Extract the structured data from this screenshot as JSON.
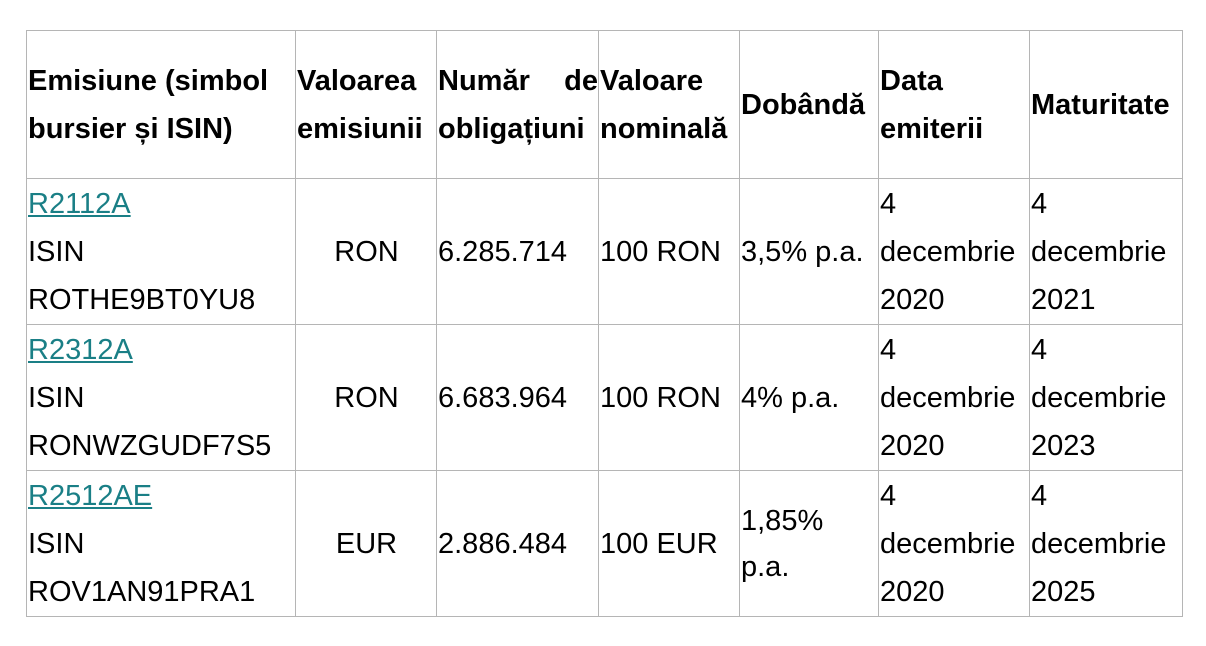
{
  "table": {
    "headers": [
      "Emisiune (simbol bursier și ISIN)",
      "Valoarea emisiunii",
      "Număr de obligațiuni",
      "Valoare nominală",
      "Dobândă",
      "Data emiterii",
      "Maturitate"
    ],
    "rows": [
      {
        "symbol": "R2112A",
        "isin_label": "ISIN",
        "isin": "ROTHE9BT0YU8",
        "currency": "RON",
        "count": "6.285.714",
        "nominal": "100 RON",
        "rate": "3,5% p.a.",
        "issue_day": "4",
        "issue_month": "decembrie",
        "issue_year": "2020",
        "maturity_day": "4",
        "maturity_month": "decembrie",
        "maturity_year": "2021"
      },
      {
        "symbol": "R2312A",
        "isin_label": "ISIN",
        "isin": "RONWZGUDF7S5",
        "currency": "RON",
        "count": "6.683.964",
        "nominal": "100 RON",
        "rate": "4% p.a.",
        "issue_day": "4",
        "issue_month": "decembrie",
        "issue_year": "2020",
        "maturity_day": "4",
        "maturity_month": "decembrie",
        "maturity_year": "2023"
      },
      {
        "symbol": "R2512AE",
        "isin_label": "ISIN",
        "isin": "ROV1AN91PRA1",
        "currency": "EUR",
        "count": "2.886.484",
        "nominal": "100 EUR",
        "rate": "1,85% p.a.",
        "issue_day": "4",
        "issue_month": "decembrie",
        "issue_year": "2020",
        "maturity_day": "4",
        "maturity_month": "decembrie",
        "maturity_year": "2025"
      }
    ]
  },
  "colors": {
    "link": "#1a7f86",
    "border": "#b5b5b5"
  }
}
